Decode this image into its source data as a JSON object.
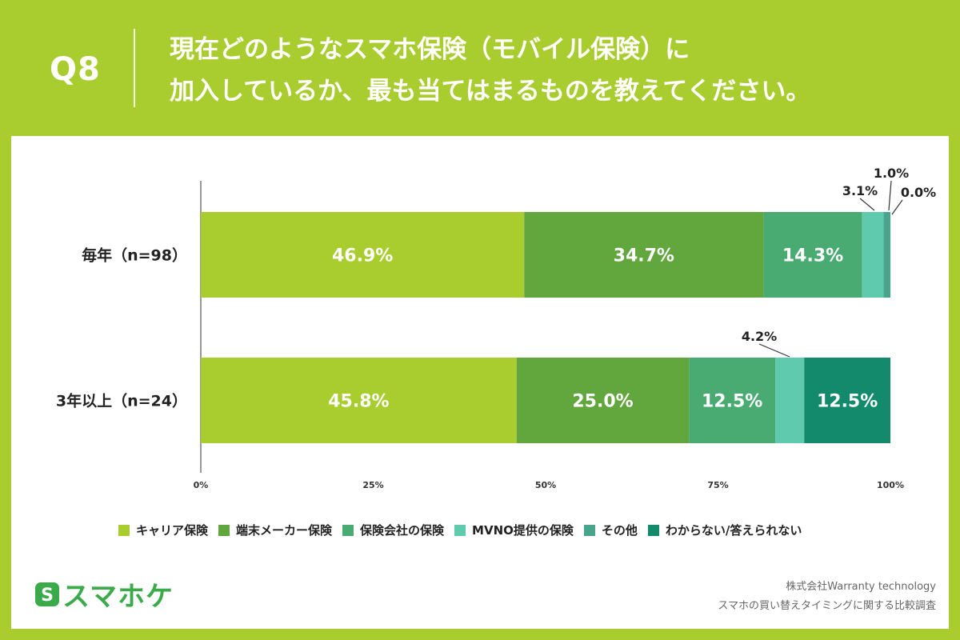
{
  "header": {
    "qnum": "Q8",
    "question_line1": "現在どのようなスマホ保険（モバイル保険）に",
    "question_line2": "加入しているか、最も当てはまるものを教えてください。"
  },
  "colors": {
    "background": "#a9cc2f",
    "キャリア保険": "#a9cc2f",
    "端末メーカー保険": "#62a63e",
    "保険会社の保険": "#4aab72",
    "MVNO提供の保険": "#5fcaae",
    "その他": "#48a48c",
    "わからない/答えられない": "#148a6c"
  },
  "chart_data": {
    "type": "bar",
    "orientation": "horizontal-stacked-100",
    "categories": [
      "毎年（n=98）",
      "3年以上（n=24）"
    ],
    "series": [
      {
        "name": "キャリア保険",
        "values": [
          46.9,
          45.8
        ]
      },
      {
        "name": "端末メーカー保険",
        "values": [
          34.7,
          25.0
        ]
      },
      {
        "name": "保険会社の保険",
        "values": [
          14.3,
          12.5
        ]
      },
      {
        "name": "MVNO提供の保険",
        "values": [
          3.1,
          4.2
        ]
      },
      {
        "name": "その他",
        "values": [
          1.0,
          0.0
        ]
      },
      {
        "name": "わからない/答えられない",
        "values": [
          0.0,
          12.5
        ]
      }
    ],
    "xticks": [
      "0%",
      "25%",
      "50%",
      "75%",
      "100%"
    ],
    "xlim": [
      0,
      100
    ],
    "grid": false,
    "legend_position": "bottom"
  },
  "legend": [
    "キャリア保険",
    "端末メーカー保険",
    "保険会社の保険",
    "MVNO提供の保険",
    "その他",
    "わからない/答えられない"
  ],
  "footer": {
    "logo_mark": "S",
    "logo_text": "スマホケ",
    "company": "株式会社Warranty technology",
    "survey": "スマホの買い替えタイミングに関する比較調査"
  }
}
